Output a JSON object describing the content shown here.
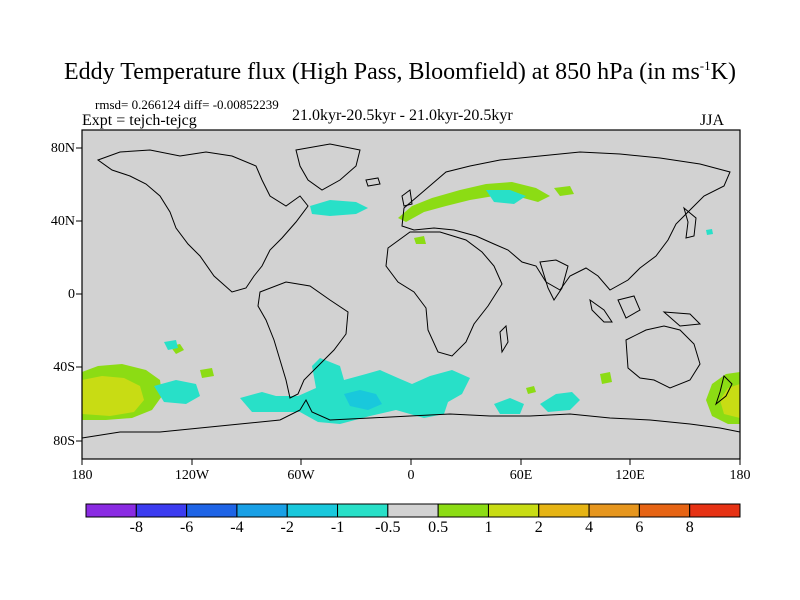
{
  "header": {
    "title": "Eddy Temperature flux (High Pass, Bloomfield) at 850 hPa (in ms",
    "title_sup": "-1",
    "title_end": "K)",
    "stats": "rmsd= 0.266124 diff= -0.00852239",
    "expt": "Expt = tejch-tejcg",
    "period": "21.0kyr-20.5kyr - 21.0kyr-20.5kyr",
    "season": "JJA"
  },
  "axes": {
    "lat_labels": [
      "80N",
      "40N",
      "0",
      "40S",
      "80S"
    ],
    "lon_labels": [
      "180",
      "120W",
      "60W",
      "0",
      "60E",
      "120E",
      "180"
    ]
  },
  "colorbar": {
    "colors": [
      "#8a2be2",
      "#3c3cf0",
      "#1e64e6",
      "#19a0e6",
      "#19c8dc",
      "#28e0c8",
      "#d2d2d2",
      "#8cdc14",
      "#c8dc14",
      "#e6b414",
      "#e6961e",
      "#e66414",
      "#e63214"
    ],
    "labels": [
      "-8",
      "-6",
      "-4",
      "-2",
      "-1",
      "-0.5",
      "0.5",
      "1",
      "2",
      "4",
      "6",
      "8"
    ]
  },
  "map": {
    "background_color": "#d2d2d2",
    "coastline_color": "#000000"
  }
}
